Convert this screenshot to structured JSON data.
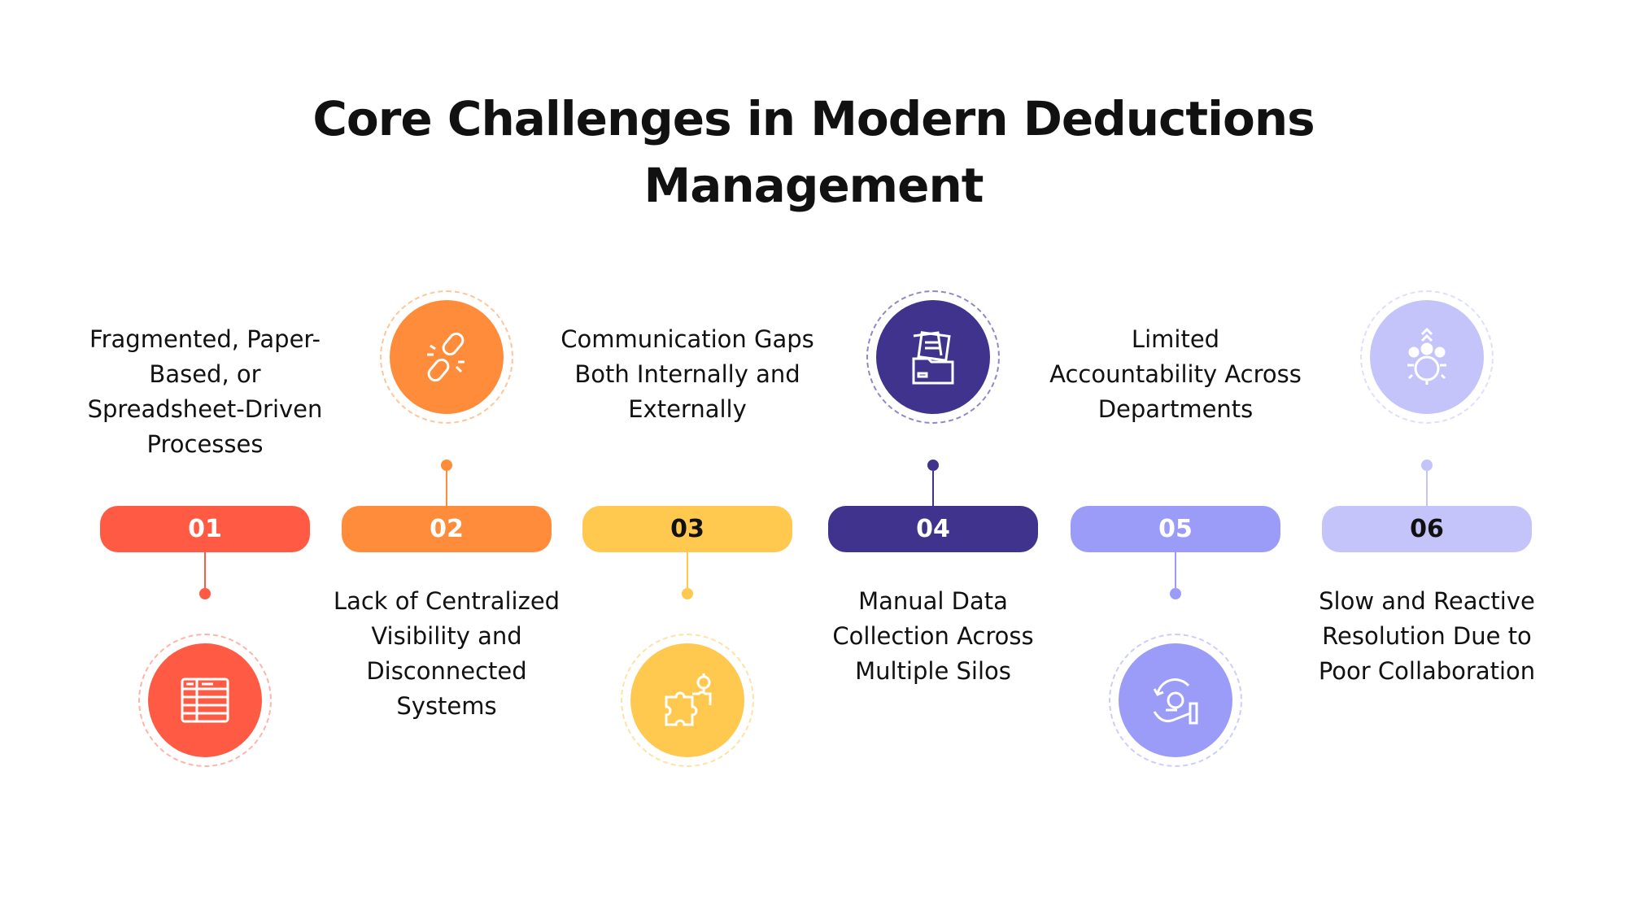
{
  "title": {
    "line1": "Core Challenges in Modern Deductions",
    "line2": "Management"
  },
  "steps": [
    {
      "number": "01",
      "text": "Fragmented, Paper-Based, or Spreadsheet-Driven Processes",
      "color": "#FF5A43",
      "number_color": "#ffffff",
      "icon": "spreadsheet-icon"
    },
    {
      "number": "02",
      "text": "Lack of Centralized Visibility and Disconnected Systems",
      "color": "#FF8C3A",
      "number_color": "#ffffff",
      "icon": "broken-link-icon"
    },
    {
      "number": "03",
      "text": "Communication Gaps Both Internally and Externally",
      "color": "#FFC84F",
      "number_color": "#111111",
      "icon": "puzzle-icon"
    },
    {
      "number": "04",
      "text": "Manual Data Collection Across Multiple Silos",
      "color": "#3F338E",
      "number_color": "#ffffff",
      "icon": "folder-documents-icon"
    },
    {
      "number": "05",
      "text": "Limited Accountability Across Departments",
      "color": "#9B9CF8",
      "number_color": "#ffffff",
      "icon": "hand-gear-cycle-icon"
    },
    {
      "number": "06",
      "text": "Slow and Reactive Resolution Due to Poor Collaboration",
      "color": "#C4C4FB",
      "number_color": "#111111",
      "icon": "team-gear-icon"
    }
  ]
}
